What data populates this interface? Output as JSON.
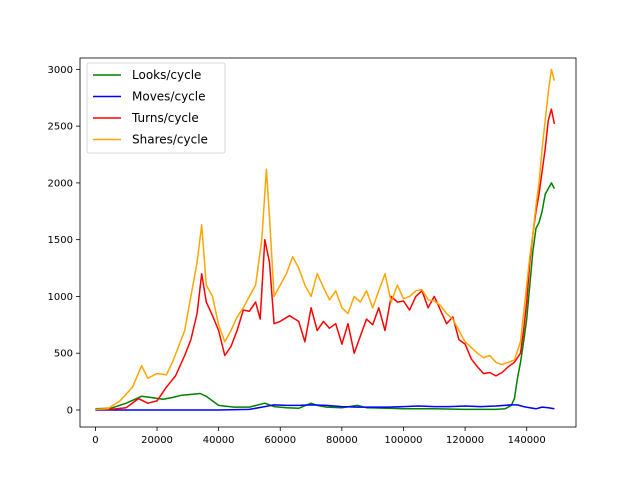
{
  "chart_data": {
    "type": "line",
    "title": "",
    "xlabel": "",
    "ylabel": "",
    "xlim": [
      -5000,
      156000
    ],
    "ylim": [
      -150,
      3100
    ],
    "x_ticks": [
      0,
      20000,
      40000,
      60000,
      80000,
      100000,
      120000,
      140000
    ],
    "x_tick_labels": [
      "0",
      "20000",
      "40000",
      "60000",
      "80000",
      "100000",
      "120000",
      "140000"
    ],
    "y_ticks": [
      0,
      500,
      1000,
      1500,
      2000,
      2500,
      3000
    ],
    "y_tick_labels": [
      "0",
      "500",
      "1000",
      "1500",
      "2000",
      "2500",
      "3000"
    ],
    "grid": false,
    "legend_position": "top-left",
    "series": [
      {
        "name": "Looks/cycle",
        "color": "#008000",
        "points": [
          [
            0,
            10
          ],
          [
            5000,
            15
          ],
          [
            10000,
            60
          ],
          [
            15000,
            120
          ],
          [
            18000,
            110
          ],
          [
            22000,
            95
          ],
          [
            25000,
            110
          ],
          [
            28000,
            130
          ],
          [
            32000,
            140
          ],
          [
            34000,
            145
          ],
          [
            36000,
            120
          ],
          [
            38000,
            80
          ],
          [
            40000,
            40
          ],
          [
            45000,
            25
          ],
          [
            50000,
            25
          ],
          [
            55000,
            60
          ],
          [
            58000,
            30
          ],
          [
            62000,
            20
          ],
          [
            66000,
            15
          ],
          [
            70000,
            60
          ],
          [
            72000,
            40
          ],
          [
            75000,
            25
          ],
          [
            80000,
            20
          ],
          [
            85000,
            40
          ],
          [
            88000,
            20
          ],
          [
            95000,
            15
          ],
          [
            100000,
            10
          ],
          [
            110000,
            10
          ],
          [
            120000,
            5
          ],
          [
            130000,
            5
          ],
          [
            133000,
            10
          ],
          [
            135000,
            40
          ],
          [
            136000,
            100
          ],
          [
            137000,
            280
          ],
          [
            138000,
            420
          ],
          [
            139000,
            600
          ],
          [
            140000,
            800
          ],
          [
            141000,
            1100
          ],
          [
            142000,
            1400
          ],
          [
            143000,
            1600
          ],
          [
            144000,
            1650
          ],
          [
            145000,
            1750
          ],
          [
            146000,
            1900
          ],
          [
            147000,
            1950
          ],
          [
            148000,
            2000
          ],
          [
            149000,
            1950
          ]
        ]
      },
      {
        "name": "Moves/cycle",
        "color": "#0000ff",
        "points": [
          [
            0,
            0
          ],
          [
            20000,
            0
          ],
          [
            40000,
            0
          ],
          [
            50000,
            5
          ],
          [
            55000,
            30
          ],
          [
            58000,
            45
          ],
          [
            62000,
            40
          ],
          [
            66000,
            40
          ],
          [
            70000,
            45
          ],
          [
            75000,
            40
          ],
          [
            80000,
            30
          ],
          [
            85000,
            25
          ],
          [
            90000,
            25
          ],
          [
            95000,
            25
          ],
          [
            100000,
            30
          ],
          [
            105000,
            35
          ],
          [
            110000,
            30
          ],
          [
            115000,
            30
          ],
          [
            120000,
            35
          ],
          [
            125000,
            30
          ],
          [
            130000,
            35
          ],
          [
            135000,
            45
          ],
          [
            137000,
            45
          ],
          [
            139000,
            30
          ],
          [
            141000,
            20
          ],
          [
            143000,
            10
          ],
          [
            145000,
            25
          ],
          [
            147000,
            20
          ],
          [
            149000,
            10
          ]
        ]
      },
      {
        "name": "Turns/cycle",
        "color": "#ff0000",
        "points": [
          [
            0,
            5
          ],
          [
            5000,
            5
          ],
          [
            10000,
            20
          ],
          [
            14000,
            100
          ],
          [
            17000,
            60
          ],
          [
            20000,
            80
          ],
          [
            23000,
            200
          ],
          [
            26000,
            300
          ],
          [
            29000,
            480
          ],
          [
            31000,
            620
          ],
          [
            33000,
            850
          ],
          [
            34500,
            1200
          ],
          [
            36000,
            950
          ],
          [
            38000,
            830
          ],
          [
            40000,
            700
          ],
          [
            42000,
            480
          ],
          [
            44000,
            560
          ],
          [
            46000,
            700
          ],
          [
            48000,
            880
          ],
          [
            50000,
            870
          ],
          [
            52000,
            950
          ],
          [
            53500,
            800
          ],
          [
            55000,
            1500
          ],
          [
            56500,
            1300
          ],
          [
            58000,
            760
          ],
          [
            60000,
            780
          ],
          [
            63000,
            830
          ],
          [
            66000,
            780
          ],
          [
            68000,
            600
          ],
          [
            70000,
            900
          ],
          [
            72000,
            700
          ],
          [
            74000,
            780
          ],
          [
            76000,
            720
          ],
          [
            78000,
            760
          ],
          [
            80000,
            580
          ],
          [
            82000,
            760
          ],
          [
            84000,
            500
          ],
          [
            86000,
            650
          ],
          [
            88000,
            800
          ],
          [
            90000,
            750
          ],
          [
            92000,
            900
          ],
          [
            94000,
            700
          ],
          [
            96000,
            1000
          ],
          [
            98000,
            950
          ],
          [
            100000,
            960
          ],
          [
            102000,
            880
          ],
          [
            104000,
            1000
          ],
          [
            106000,
            1050
          ],
          [
            108000,
            900
          ],
          [
            110000,
            1000
          ],
          [
            112000,
            880
          ],
          [
            114000,
            760
          ],
          [
            116000,
            820
          ],
          [
            118000,
            620
          ],
          [
            120000,
            580
          ],
          [
            122000,
            450
          ],
          [
            124000,
            380
          ],
          [
            126000,
            320
          ],
          [
            128000,
            330
          ],
          [
            130000,
            300
          ],
          [
            132000,
            330
          ],
          [
            134000,
            380
          ],
          [
            136000,
            420
          ],
          [
            138000,
            500
          ],
          [
            139000,
            700
          ],
          [
            140000,
            950
          ],
          [
            141000,
            1300
          ],
          [
            142000,
            1550
          ],
          [
            143000,
            1750
          ],
          [
            144000,
            1900
          ],
          [
            145000,
            2100
          ],
          [
            146000,
            2300
          ],
          [
            147000,
            2550
          ],
          [
            148000,
            2650
          ],
          [
            149000,
            2520
          ]
        ]
      },
      {
        "name": "Shares/cycle",
        "color": "#ffa500",
        "points": [
          [
            0,
            5
          ],
          [
            4000,
            10
          ],
          [
            8000,
            80
          ],
          [
            12000,
            200
          ],
          [
            15000,
            390
          ],
          [
            17000,
            280
          ],
          [
            20000,
            320
          ],
          [
            23000,
            310
          ],
          [
            25000,
            420
          ],
          [
            27000,
            560
          ],
          [
            29000,
            700
          ],
          [
            31000,
            1000
          ],
          [
            33000,
            1300
          ],
          [
            34500,
            1630
          ],
          [
            36000,
            1100
          ],
          [
            38000,
            1000
          ],
          [
            40000,
            750
          ],
          [
            42000,
            600
          ],
          [
            44000,
            700
          ],
          [
            46000,
            820
          ],
          [
            48000,
            900
          ],
          [
            50000,
            1000
          ],
          [
            52000,
            1100
          ],
          [
            54000,
            1500
          ],
          [
            55500,
            2120
          ],
          [
            56500,
            1700
          ],
          [
            58000,
            1000
          ],
          [
            60000,
            1100
          ],
          [
            62000,
            1200
          ],
          [
            64000,
            1350
          ],
          [
            66000,
            1250
          ],
          [
            68000,
            1100
          ],
          [
            70000,
            1000
          ],
          [
            72000,
            1200
          ],
          [
            74000,
            1080
          ],
          [
            76000,
            970
          ],
          [
            78000,
            1050
          ],
          [
            80000,
            900
          ],
          [
            82000,
            850
          ],
          [
            84000,
            1000
          ],
          [
            86000,
            950
          ],
          [
            88000,
            1050
          ],
          [
            90000,
            900
          ],
          [
            92000,
            1050
          ],
          [
            94000,
            1200
          ],
          [
            96000,
            950
          ],
          [
            98000,
            1100
          ],
          [
            100000,
            980
          ],
          [
            102000,
            1000
          ],
          [
            104000,
            1050
          ],
          [
            106000,
            1060
          ],
          [
            108000,
            970
          ],
          [
            110000,
            960
          ],
          [
            112000,
            920
          ],
          [
            114000,
            850
          ],
          [
            116000,
            800
          ],
          [
            118000,
            700
          ],
          [
            120000,
            600
          ],
          [
            122000,
            550
          ],
          [
            124000,
            500
          ],
          [
            126000,
            460
          ],
          [
            128000,
            480
          ],
          [
            130000,
            420
          ],
          [
            132000,
            400
          ],
          [
            134000,
            420
          ],
          [
            136000,
            440
          ],
          [
            138000,
            600
          ],
          [
            139000,
            850
          ],
          [
            140000,
            1100
          ],
          [
            141000,
            1350
          ],
          [
            142000,
            1550
          ],
          [
            143000,
            1800
          ],
          [
            144000,
            2000
          ],
          [
            145000,
            2300
          ],
          [
            146000,
            2550
          ],
          [
            147000,
            2800
          ],
          [
            148000,
            3000
          ],
          [
            149000,
            2900
          ]
        ]
      }
    ]
  }
}
